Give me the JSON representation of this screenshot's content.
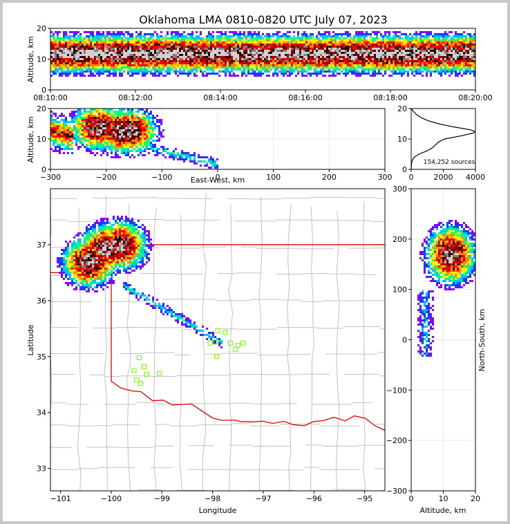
{
  "chart_data": [
    {
      "panel": "time-height",
      "type": "heatmap",
      "title": "Oklahoma LMA 0810-0820 UTC July 07, 2023",
      "xlabel": "",
      "ylabel": "Altitude, km",
      "ylim": [
        0,
        20
      ],
      "yticks": [
        "0",
        "10",
        "20"
      ],
      "xticks": [
        "08:10:00",
        "08:12:00",
        "08:14:00",
        "08:16:00",
        "08:18:00",
        "08:20:00"
      ],
      "core_altitude_km": 12,
      "density_band_km": [
        4,
        20
      ]
    },
    {
      "panel": "east-west-altitude",
      "type": "heatmap",
      "xlabel": "East-West, km",
      "ylabel": "Altitude, km",
      "xlim": [
        -300,
        300
      ],
      "ylim": [
        0,
        20
      ],
      "xticks": [
        "−300",
        "−200",
        "−100",
        "0",
        "100",
        "200",
        "300"
      ],
      "yticks": [
        "0",
        "10",
        "20"
      ],
      "cores": [
        {
          "x": -215,
          "z": 14
        },
        {
          "x": -175,
          "z": 13
        },
        {
          "x": -160,
          "z": 13
        }
      ],
      "trail_to_x": 0
    },
    {
      "panel": "altitude-histogram",
      "type": "line",
      "xlim": [
        0,
        4000
      ],
      "ylim": [
        0,
        20
      ],
      "xticks": [
        "0",
        "2000",
        "4000"
      ],
      "yticks": [
        "0",
        "10",
        "20"
      ],
      "annotation": "154,252 sources",
      "points": [
        {
          "alt": 0,
          "count": 0
        },
        {
          "alt": 2,
          "count": 20
        },
        {
          "alt": 3,
          "count": 70
        },
        {
          "alt": 4,
          "count": 190
        },
        {
          "alt": 5,
          "count": 480
        },
        {
          "alt": 6,
          "count": 950
        },
        {
          "alt": 7,
          "count": 1300
        },
        {
          "alt": 8,
          "count": 1500
        },
        {
          "alt": 9,
          "count": 1700
        },
        {
          "alt": 10,
          "count": 2100
        },
        {
          "alt": 11,
          "count": 3100
        },
        {
          "alt": 12,
          "count": 3900
        },
        {
          "alt": 12.5,
          "count": 3950
        },
        {
          "alt": 13,
          "count": 3700
        },
        {
          "alt": 14,
          "count": 2600
        },
        {
          "alt": 15,
          "count": 1700
        },
        {
          "alt": 16,
          "count": 1050
        },
        {
          "alt": 17,
          "count": 620
        },
        {
          "alt": 18,
          "count": 330
        },
        {
          "alt": 19,
          "count": 150
        },
        {
          "alt": 19.8,
          "count": 30
        }
      ]
    },
    {
      "panel": "plan-view",
      "type": "heatmap",
      "xlabel": "Longitude",
      "ylabel": "Latitude",
      "xlim": [
        -101.2,
        -94.6
      ],
      "ylim": [
        32.6,
        38.0
      ],
      "xticks": [
        "−101",
        "−100",
        "−99",
        "−98",
        "−97",
        "−96",
        "−95"
      ],
      "yticks": [
        "33",
        "34",
        "35",
        "36",
        "37"
      ],
      "cores": [
        {
          "lon": -100.45,
          "lat": 36.7
        },
        {
          "lon": -100.1,
          "lat": 36.95
        },
        {
          "lon": -99.85,
          "lat": 37.0
        }
      ],
      "trail_to": {
        "lon": -97.9,
        "lat": 35.3
      },
      "stations": [
        {
          "lon": -99.45,
          "lat": 34.98
        },
        {
          "lon": -99.35,
          "lat": 34.82
        },
        {
          "lon": -99.55,
          "lat": 34.75
        },
        {
          "lon": -99.3,
          "lat": 34.68
        },
        {
          "lon": -99.05,
          "lat": 34.7
        },
        {
          "lon": -99.5,
          "lat": 34.58
        },
        {
          "lon": -99.42,
          "lat": 34.52
        },
        {
          "lon": -98.05,
          "lat": 35.24
        },
        {
          "lon": -97.95,
          "lat": 35.26
        },
        {
          "lon": -97.9,
          "lat": 35.46
        },
        {
          "lon": -97.75,
          "lat": 35.43
        },
        {
          "lon": -97.65,
          "lat": 35.24
        },
        {
          "lon": -97.55,
          "lat": 35.13
        },
        {
          "lon": -97.5,
          "lat": 35.2
        },
        {
          "lon": -97.4,
          "lat": 35.24
        },
        {
          "lon": -97.92,
          "lat": 35.0
        }
      ]
    },
    {
      "panel": "altitude-north-south",
      "type": "heatmap",
      "xlabel": "Altitude, km",
      "ylabel": "North-South, km",
      "xlim": [
        0,
        20
      ],
      "ylim": [
        -300,
        300
      ],
      "xticks": [
        "0",
        "10",
        "20"
      ],
      "yticks": [
        "−300",
        "−200",
        "−100",
        "0",
        "100",
        "200",
        "300"
      ],
      "core": {
        "alt": 12,
        "ns": 170
      }
    }
  ],
  "colors": {
    "red_line": "#e00000",
    "county_lines": "#c0c0c0",
    "station_marker": "#7cfc00",
    "histogram_line": "#000000",
    "colormap": [
      "#ffffff",
      "#8800ff",
      "#0044ff",
      "#00c0ff",
      "#00ff88",
      "#ffee00",
      "#ff8800",
      "#ff0000",
      "#aa0000",
      "#330000",
      "#808080",
      "#d0d0d0"
    ]
  }
}
